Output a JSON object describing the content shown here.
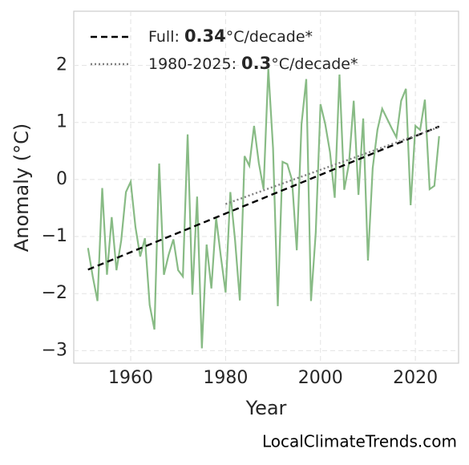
{
  "chart_data": {
    "type": "line",
    "x_label": "Year",
    "y_label": "Anomaly (°C)",
    "source": "LocalClimateTrends.com",
    "xlim": [
      1948.0,
      2029.1
    ],
    "ylim": [
      -3.22,
      2.95
    ],
    "xticks": [
      1960,
      1980,
      2000,
      2020
    ],
    "yticks": [
      {
        "value": -3,
        "label": "−3"
      },
      {
        "value": -2,
        "label": "−2"
      },
      {
        "value": -1,
        "label": "−1"
      },
      0,
      1,
      2
    ],
    "grid": true,
    "legend_position": "upper left",
    "series": [
      {
        "color": "#88bb85",
        "style": "solid",
        "x": [
          1951,
          1952,
          1953,
          1954,
          1955,
          1956,
          1957,
          1958,
          1959,
          1960,
          1961,
          1962,
          1963,
          1964,
          1965,
          1966,
          1967,
          1968,
          1969,
          1970,
          1971,
          1972,
          1973,
          1974,
          1975,
          1976,
          1977,
          1978,
          1979,
          1980,
          1981,
          1982,
          1983,
          1984,
          1985,
          1986,
          1987,
          1988,
          1989,
          1990,
          1991,
          1992,
          1993,
          1994,
          1995,
          1996,
          1997,
          1998,
          1999,
          2000,
          2001,
          2002,
          2003,
          2004,
          2005,
          2006,
          2007,
          2008,
          2009,
          2010,
          2011,
          2012,
          2013,
          2014,
          2015,
          2016,
          2017,
          2018,
          2019,
          2020,
          2021,
          2022,
          2023,
          2024,
          2025
        ],
        "values": [
          -1.2,
          -1.7,
          -2.13,
          -0.15,
          -1.67,
          -0.66,
          -1.59,
          -1.07,
          -0.22,
          -0.04,
          -0.83,
          -1.35,
          -1.03,
          -2.2,
          -2.63,
          0.28,
          -1.67,
          -1.32,
          -1.05,
          -1.59,
          -1.7,
          0.79,
          -2.02,
          -0.3,
          -2.96,
          -1.14,
          -1.91,
          -0.67,
          -1.35,
          -1.98,
          -0.22,
          -1.07,
          -2.12,
          0.41,
          0.24,
          0.94,
          0.29,
          -0.17,
          1.94,
          0.55,
          -2.22,
          0.31,
          0.27,
          -0.01,
          -1.24,
          0.97,
          1.76,
          -2.13,
          -0.93,
          1.32,
          0.97,
          0.48,
          -0.32,
          1.84,
          -0.18,
          0.28,
          1.38,
          -0.27,
          1.07,
          -1.42,
          0.2,
          0.87,
          1.24,
          1.07,
          0.9,
          0.74,
          1.38,
          1.59,
          -0.45,
          0.94,
          0.87,
          1.4,
          -0.17,
          -0.11,
          0.76
        ]
      },
      {
        "name_parts": [
          "Full: ",
          "0.34",
          "°C/decade*"
        ],
        "color": "#000000",
        "style": "dashed",
        "x": [
          1951,
          2025
        ],
        "values": [
          -1.58,
          0.93
        ]
      },
      {
        "name_parts": [
          "1980-2025: ",
          "0.3",
          "°C/decade*"
        ],
        "color": "#808080",
        "style": "dotted",
        "x": [
          1980,
          2025
        ],
        "values": [
          -0.43,
          0.92
        ]
      }
    ]
  }
}
